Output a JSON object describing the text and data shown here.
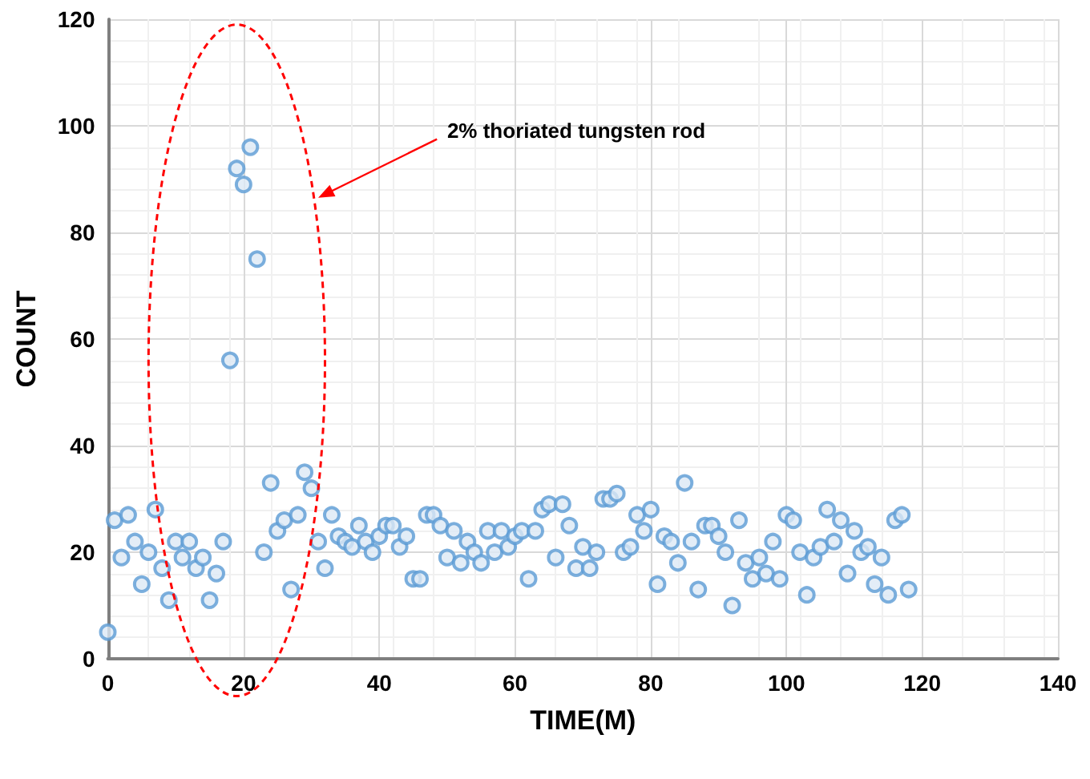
{
  "chart_data": {
    "type": "scatter",
    "xlabel": "TIME(M)",
    "ylabel": "COUNT",
    "annotations": [
      "2% thoriated tungsten rod"
    ],
    "x": [
      0,
      1,
      2,
      3,
      4,
      5,
      6,
      7,
      8,
      9,
      10,
      11,
      12,
      13,
      14,
      15,
      16,
      17,
      18,
      19,
      20,
      21,
      22,
      23,
      24,
      25,
      26,
      27,
      28,
      29,
      30,
      31,
      32,
      33,
      34,
      35,
      36,
      37,
      38,
      39,
      40,
      41,
      42,
      43,
      44,
      45,
      46,
      47,
      48,
      49,
      50,
      51,
      52,
      53,
      54,
      55,
      56,
      57,
      58,
      59,
      60,
      61,
      62,
      63,
      64,
      65,
      66,
      67,
      68,
      69,
      70,
      71,
      72,
      73,
      74,
      75,
      76,
      77,
      78,
      79,
      80,
      81,
      82,
      83,
      84,
      85,
      86,
      87,
      88,
      89,
      90,
      91,
      92,
      93,
      94,
      95,
      96,
      97,
      98,
      99,
      100,
      101,
      102,
      103,
      104,
      105,
      106,
      107,
      108,
      109,
      110,
      111,
      112,
      113,
      114,
      115,
      116,
      117,
      118
    ],
    "series": [
      {
        "color": "#5b9bd5",
        "values": [
          5,
          26,
          19,
          27,
          22,
          14,
          20,
          28,
          17,
          11,
          22,
          19,
          22,
          17,
          19,
          11,
          16,
          22,
          56,
          92,
          89,
          96,
          75,
          20,
          33,
          24,
          26,
          13,
          27,
          35,
          32,
          22,
          17,
          27,
          23,
          22,
          21,
          25,
          22,
          20,
          23,
          25,
          25,
          21,
          23,
          15,
          15,
          27,
          27,
          25,
          19,
          24,
          18,
          22,
          20,
          18,
          24,
          20,
          24,
          21,
          23,
          24,
          15,
          24,
          28,
          29,
          19,
          29,
          25,
          17,
          21,
          17,
          20,
          30,
          30,
          31,
          20,
          21,
          27,
          24,
          28,
          14,
          23,
          22,
          18,
          33,
          22,
          13,
          25,
          25,
          23,
          20,
          10,
          26,
          18,
          15,
          19,
          16,
          22,
          15,
          27,
          26,
          20,
          12,
          19,
          21,
          28,
          22,
          26,
          16,
          24,
          20,
          21,
          14,
          19,
          12,
          26,
          27,
          13
        ]
      }
    ],
    "xlim": [
      0,
      140
    ],
    "xticks": [
      0,
      20,
      40,
      60,
      80,
      100,
      120,
      140
    ],
    "ylim": [
      0,
      120
    ],
    "yticks": [
      0,
      20,
      40,
      60,
      80,
      100,
      120
    ],
    "grid": true,
    "marker": "circle"
  }
}
